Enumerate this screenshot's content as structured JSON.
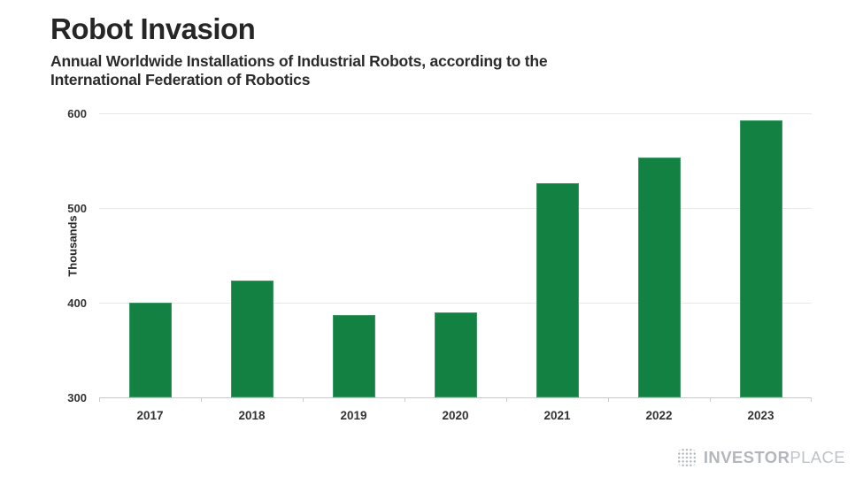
{
  "header": {
    "title": "Robot Invasion",
    "subtitle": "Annual Worldwide Installations of Industrial Robots, according to the International Federation of Robotics"
  },
  "chart_data": {
    "type": "bar",
    "categories": [
      "2017",
      "2018",
      "2019",
      "2020",
      "2021",
      "2022",
      "2023"
    ],
    "values": [
      400,
      423,
      387,
      390,
      526,
      553,
      593
    ],
    "title": "Robot Invasion",
    "subtitle": "Annual Worldwide Installations of Industrial Robots, according to the International Federation of Robotics",
    "xlabel": "",
    "ylabel": "Thousands",
    "yticks": [
      300,
      400,
      500,
      600
    ],
    "ylim": [
      300,
      600
    ],
    "grid": "horizontal",
    "legend": "none",
    "bar_color": "#128142"
  },
  "footer": {
    "logo": {
      "icon": "dotted-globe-icon",
      "brand_bold": "INVESTOR",
      "brand_light": "PLACE",
      "color": "#b3b7bd"
    }
  }
}
